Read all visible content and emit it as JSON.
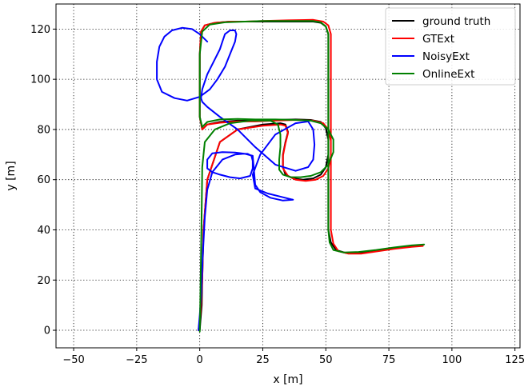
{
  "chart_data": {
    "type": "line",
    "title": "",
    "xlabel": "x [m]",
    "ylabel": "y [m]",
    "xlim": [
      -57,
      127
    ],
    "ylim": [
      -7,
      130
    ],
    "xticks": [
      -50,
      -25,
      0,
      25,
      50,
      75,
      100,
      125
    ],
    "yticks": [
      0,
      20,
      40,
      60,
      80,
      100,
      120
    ],
    "grid": true,
    "legend_position": "upper right",
    "series": [
      {
        "name": "ground truth",
        "color": "#000000",
        "x": [
          0,
          0.3,
          0.8,
          1,
          1.5,
          3,
          8,
          15,
          25,
          32,
          34,
          35,
          34,
          33,
          33,
          34,
          37,
          41,
          45,
          48,
          50,
          51,
          51,
          50,
          48,
          44,
          38,
          30,
          22,
          15,
          8,
          3,
          1,
          0,
          0,
          0,
          0.5,
          2,
          6,
          12,
          18,
          25,
          35,
          45,
          48,
          50,
          51,
          51,
          51,
          51,
          52,
          54,
          58,
          63,
          70,
          77,
          84,
          88.5
        ],
        "y": [
          0,
          4,
          10,
          20,
          40,
          60,
          75,
          80,
          82,
          82.5,
          82,
          79,
          75,
          70,
          65,
          62,
          60.5,
          60,
          60.5,
          62,
          65,
          70,
          76,
          80.5,
          83,
          83.8,
          84,
          83.8,
          83.5,
          83.5,
          83,
          82,
          80,
          85,
          95,
          110,
          119,
          121.5,
          122.5,
          123,
          123,
          123,
          123,
          123,
          122.5,
          121,
          118,
          100,
          70,
          40,
          35,
          32,
          30.8,
          30.8,
          31.6,
          32.6,
          33.4,
          33.8
        ]
      },
      {
        "name": "GTExt",
        "color": "#ff0000",
        "x": [
          -0.5,
          0,
          0.5,
          1,
          1.5,
          3,
          8,
          15,
          25,
          32,
          34,
          35,
          34,
          33,
          33,
          35,
          38,
          42,
          46,
          49,
          51,
          52,
          52,
          51,
          49,
          45,
          38,
          30,
          22,
          15,
          8,
          3,
          1,
          0,
          0,
          0,
          0.5,
          2,
          6,
          12,
          18,
          25,
          35,
          45,
          49,
          51,
          52,
          52,
          52,
          52,
          53,
          55,
          59,
          64,
          70,
          77,
          84,
          88.5
        ],
        "y": [
          0,
          4,
          10,
          20,
          40,
          60,
          75,
          80,
          81.5,
          82,
          81.5,
          78.5,
          74.5,
          69.5,
          64.5,
          61.5,
          60,
          59.5,
          60,
          61.5,
          64.5,
          69.5,
          75.5,
          80,
          82.5,
          83.5,
          83.8,
          83.5,
          83.2,
          83.2,
          82.7,
          82,
          80,
          85,
          95,
          110,
          119,
          121.5,
          122.5,
          123,
          123,
          123.2,
          123.5,
          123.7,
          123,
          121.5,
          118,
          100,
          70,
          40,
          34.5,
          31.5,
          30.5,
          30.5,
          31.4,
          32.4,
          33.2,
          33.6
        ]
      },
      {
        "name": "NoisyExt",
        "color": "#0000ff",
        "x": [
          -0.5,
          0,
          0.6,
          1.2,
          2,
          3,
          5,
          9,
          14,
          17,
          19,
          20.5,
          21,
          21,
          20,
          16,
          12,
          8,
          5,
          3,
          3,
          5,
          9,
          14,
          18,
          21,
          22,
          24,
          28,
          33,
          37,
          33,
          27,
          22,
          21,
          24,
          30,
          38,
          43,
          45,
          45.5,
          45,
          43,
          38,
          30,
          22,
          15,
          8,
          3,
          1,
          0.5,
          1,
          3,
          6,
          8,
          9,
          10,
          12,
          14,
          14.5,
          14,
          12,
          10,
          7,
          4,
          0,
          -5,
          -10,
          -15,
          -17,
          -17,
          -16,
          -14,
          -11,
          -7,
          -3,
          0,
          3
        ],
        "y": [
          0,
          6,
          15,
          30,
          45,
          56,
          63,
          68,
          70,
          70.3,
          70.3,
          69.5,
          67.5,
          64.5,
          61.5,
          60.5,
          61,
          62,
          63,
          64.5,
          68,
          70.5,
          71,
          70.8,
          70.3,
          69.5,
          58,
          55,
          52.8,
          51.7,
          52,
          53,
          54.5,
          56.5,
          62,
          70,
          78,
          82.5,
          83.2,
          80,
          74,
          68,
          65,
          63.5,
          66,
          73,
          80,
          85,
          89,
          91,
          92.5,
          96,
          102,
          108,
          112,
          115,
          118,
          119.5,
          119.5,
          118,
          115,
          110,
          105,
          100,
          96,
          93,
          91.5,
          92.5,
          95,
          100,
          107,
          113,
          117,
          119.5,
          120.5,
          120,
          118,
          115
        ]
      },
      {
        "name": "OnlineExt",
        "color": "#008000",
        "x": [
          0,
          0.2,
          0.5,
          0.8,
          1,
          2,
          6,
          12,
          20,
          28,
          31,
          32,
          32,
          31.5,
          31.5,
          33,
          36,
          40,
          44,
          48,
          51,
          53,
          53,
          51,
          48,
          44,
          38,
          30,
          22,
          15,
          8,
          3,
          1,
          0,
          0,
          0,
          1,
          4,
          10,
          18,
          25,
          35,
          45,
          48,
          50,
          51,
          51,
          51,
          51,
          51.5,
          53,
          57,
          63,
          70,
          77,
          84,
          89
        ],
        "y": [
          -0.5,
          10,
          30,
          50,
          65,
          75,
          80,
          82.5,
          83.5,
          83.5,
          82,
          78,
          73,
          68,
          64,
          62,
          61,
          61,
          61.5,
          63,
          66,
          71,
          76,
          80,
          82.5,
          83.5,
          83.8,
          84,
          84,
          84.2,
          84,
          83,
          81,
          85,
          95,
          110,
          119,
          121.8,
          122.7,
          123,
          123.2,
          123.2,
          123.2,
          122.7,
          121,
          118,
          100,
          70,
          40,
          35,
          32,
          31,
          31.2,
          32,
          33,
          33.8,
          34.2
        ]
      }
    ]
  }
}
